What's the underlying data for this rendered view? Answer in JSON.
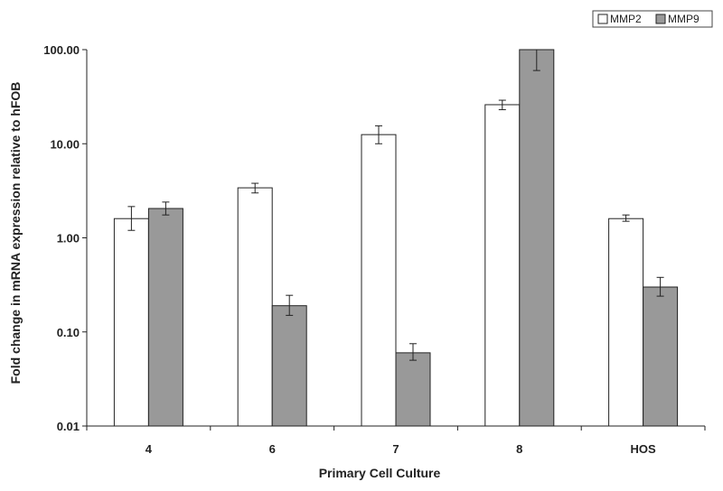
{
  "chart_data": {
    "type": "bar",
    "title": "",
    "xlabel": "Primary Cell Culture",
    "ylabel": "Fold change in mRNA expression relative to hFOB",
    "y_scale": "log",
    "ylim": [
      0.01,
      100
    ],
    "y_ticks": [
      "0.01",
      "0.10",
      "1.00",
      "10.00",
      "100.00"
    ],
    "categories": [
      "4",
      "6",
      "7",
      "8",
      "HOS"
    ],
    "series": [
      {
        "name": "MMP2",
        "color": "#ffffff",
        "values": [
          1.6,
          3.4,
          12.5,
          26,
          1.6
        ],
        "error_low": [
          1.2,
          3.0,
          10.0,
          23,
          1.5
        ],
        "error_high": [
          2.15,
          3.8,
          15.5,
          29,
          1.75
        ]
      },
      {
        "name": "MMP9",
        "color": "#999999",
        "values": [
          2.05,
          0.19,
          0.06,
          100,
          0.3
        ],
        "error_low": [
          1.75,
          0.15,
          0.05,
          60,
          0.24
        ],
        "error_high": [
          2.4,
          0.245,
          0.075,
          100,
          0.38
        ]
      }
    ],
    "legend_position": "top-right",
    "grid": false
  }
}
